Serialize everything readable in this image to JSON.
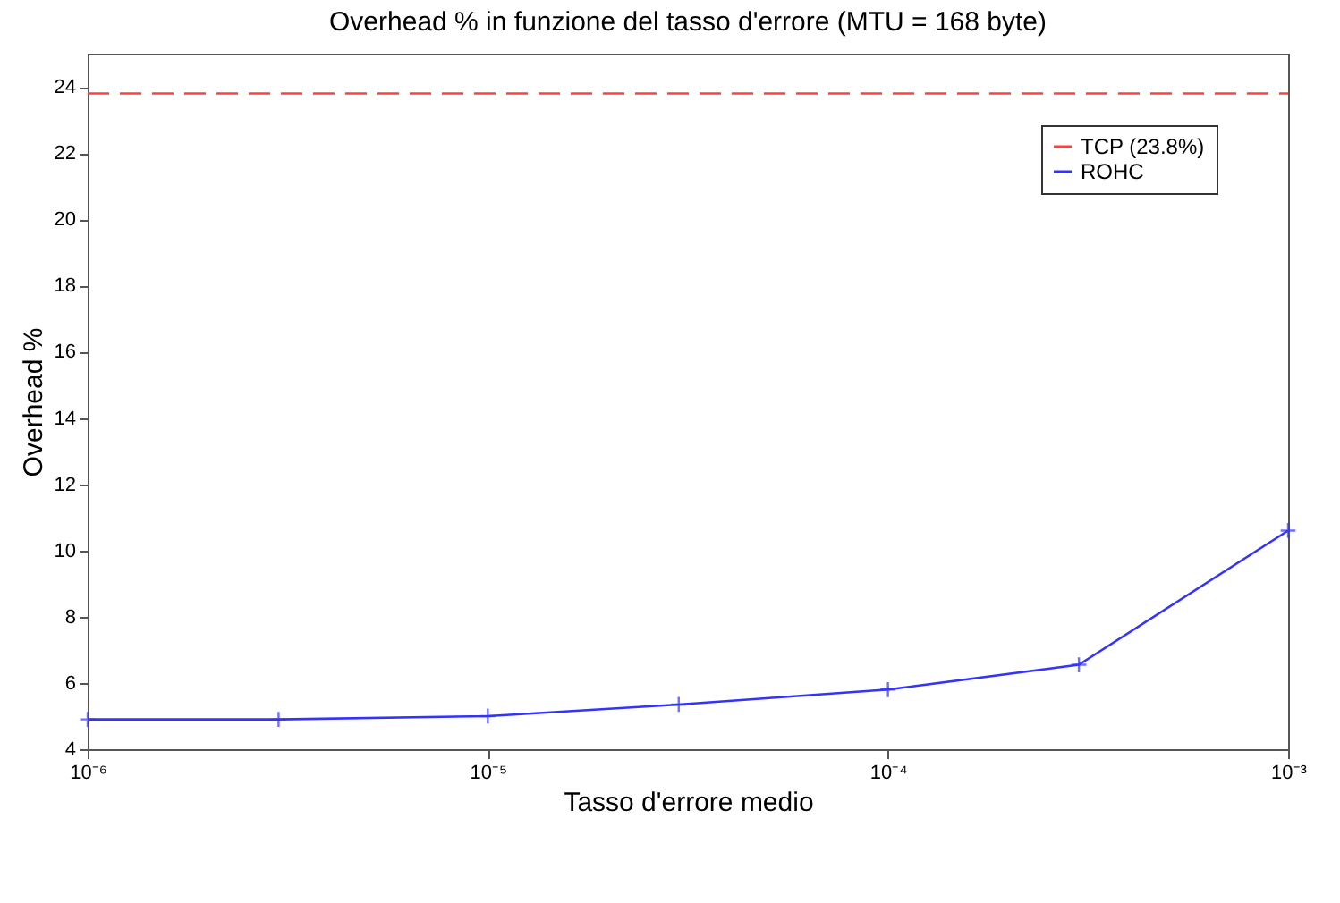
{
  "chart_data": {
    "type": "line",
    "title": "Overhead % in funzione del tasso d'errore (MTU = 168 byte)",
    "xlabel": "Tasso d'errore medio",
    "ylabel": "Overhead %",
    "log": "x",
    "xlim": [
      1e-06,
      0.001
    ],
    "xticks": [
      {
        "value": 1e-06,
        "label": "10⁻⁶"
      },
      {
        "value": 1e-05,
        "label": "10⁻⁵"
      },
      {
        "value": 0.0001,
        "label": "10⁻⁴"
      },
      {
        "value": 0.001,
        "label": "10⁻³"
      }
    ],
    "ylim": [
      4,
      25
    ],
    "yticks": [
      4,
      6,
      8,
      10,
      12,
      14,
      16,
      18,
      20,
      22,
      24
    ],
    "grid": false,
    "legend": "top right",
    "series": [
      {
        "name": "TCP (23.8%)",
        "color": "#ff4040",
        "line_style": "dashed",
        "marker": "none",
        "x": [
          1e-06,
          0.001
        ],
        "values": [
          23.8,
          23.8
        ]
      },
      {
        "name": "ROHC",
        "color": "#3333ff",
        "line_style": "solid",
        "marker": "cross",
        "x": [
          1e-06,
          3e-06,
          1e-05,
          3e-05,
          0.0001,
          0.0003,
          0.001
        ],
        "values": [
          4.9,
          4.9,
          5.0,
          5.35,
          5.8,
          6.55,
          10.6
        ]
      }
    ]
  }
}
